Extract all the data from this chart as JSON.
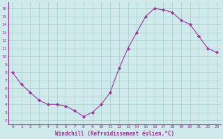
{
  "x": [
    0,
    1,
    2,
    3,
    4,
    5,
    6,
    7,
    8,
    9,
    10,
    11,
    12,
    13,
    14,
    15,
    16,
    17,
    18,
    19,
    20,
    21,
    22,
    23
  ],
  "y": [
    8.0,
    6.5,
    5.5,
    4.5,
    4.0,
    4.0,
    3.8,
    3.2,
    2.5,
    3.0,
    4.0,
    5.5,
    8.5,
    11.0,
    13.0,
    15.0,
    16.0,
    15.8,
    15.5,
    14.5,
    14.0,
    12.5,
    11.0,
    10.5
  ],
  "xlabel": "Windchill (Refroidissement éolien,°C)",
  "xlim_min": -0.5,
  "xlim_max": 23.5,
  "ylim_min": 1.5,
  "ylim_max": 16.8,
  "yticks": [
    2,
    3,
    4,
    5,
    6,
    7,
    8,
    9,
    10,
    11,
    12,
    13,
    14,
    15,
    16
  ],
  "xticks": [
    0,
    1,
    2,
    3,
    4,
    5,
    6,
    7,
    8,
    9,
    10,
    11,
    12,
    13,
    14,
    15,
    16,
    17,
    18,
    19,
    20,
    21,
    22,
    23
  ],
  "line_color": "#993399",
  "marker": "D",
  "markersize": 2.0,
  "linewidth": 0.8,
  "bg_color": "#ceeaea",
  "grid_color": "#aacccc",
  "label_color": "#993399",
  "tick_color": "#993399",
  "tick_fontsize": 4.5,
  "xlabel_fontsize": 5.5
}
